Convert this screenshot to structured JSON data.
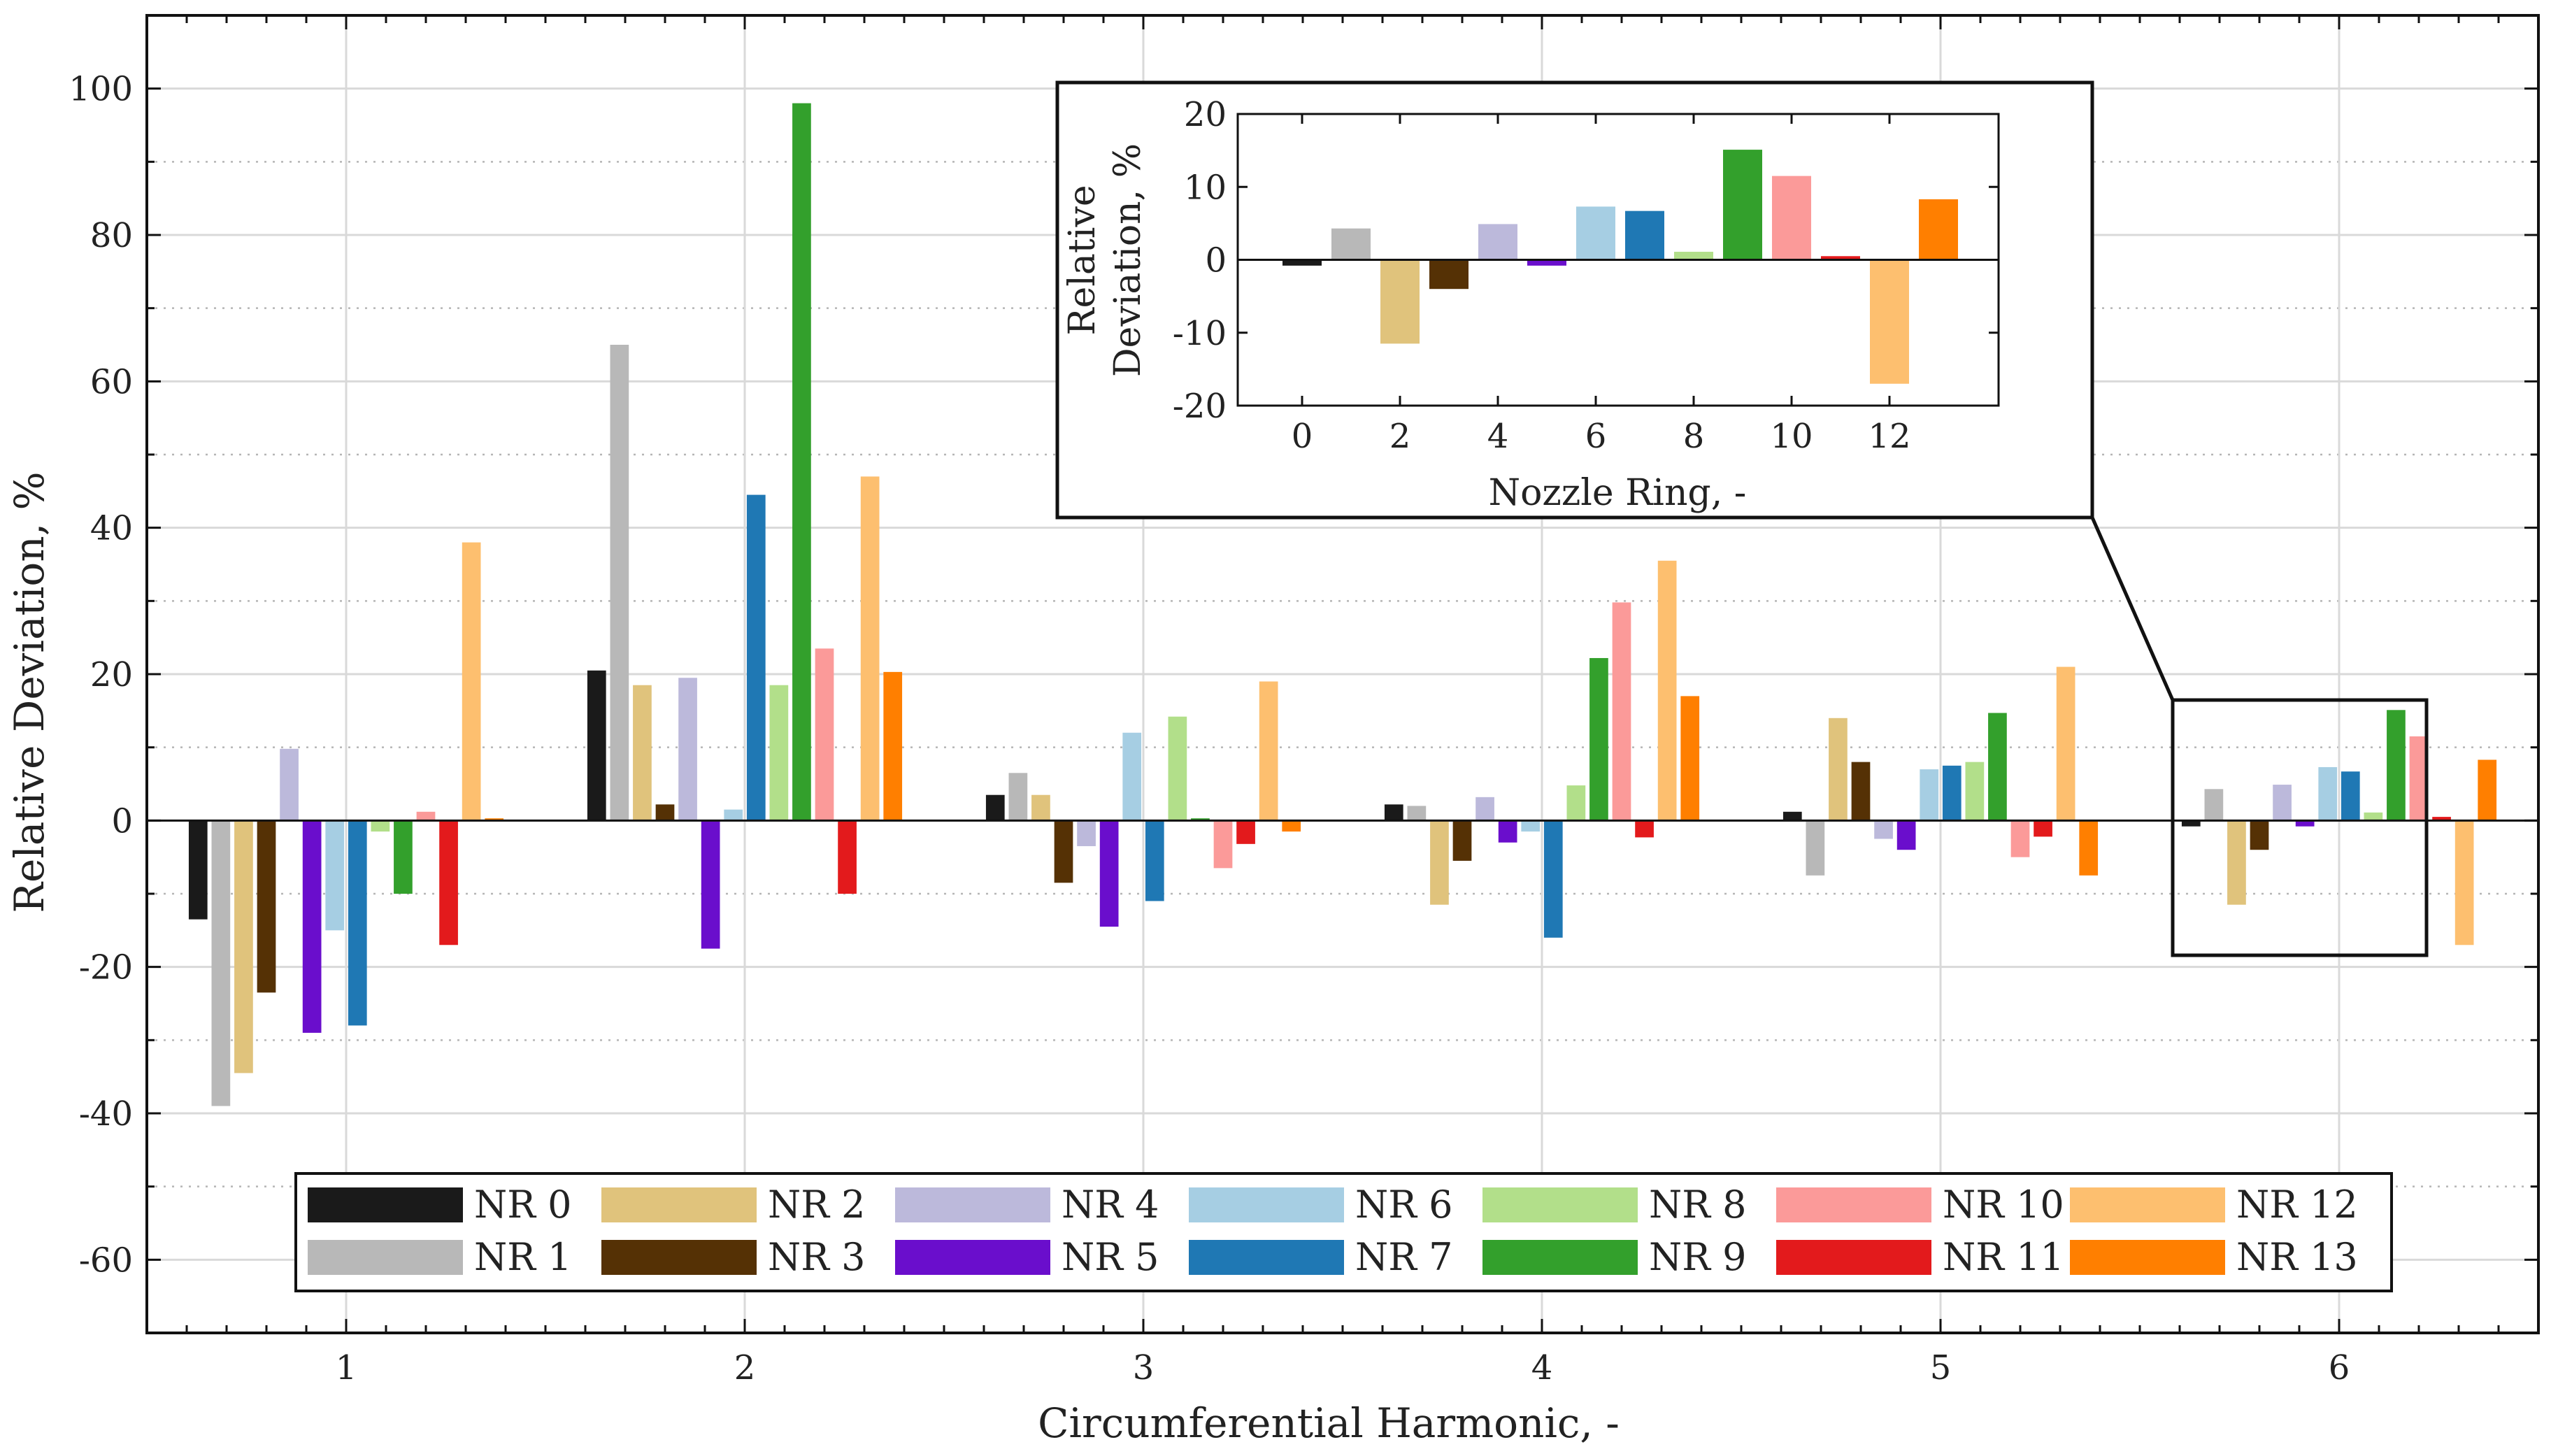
{
  "chart_data": {
    "main": {
      "type": "bar",
      "xlabel": "Circumferential Harmonic, -",
      "ylabel": "Relative Deviation, %",
      "ylim": [
        -70,
        110
      ],
      "xlim": [
        0.5,
        6.5
      ],
      "grid": true,
      "categories": [
        "1",
        "2",
        "3",
        "4",
        "5",
        "6"
      ],
      "yticks": [
        "-60",
        "-40",
        "-20",
        "0",
        "20",
        "40",
        "60",
        "80",
        "100"
      ],
      "series": [
        {
          "name": "NR 0",
          "color": "#1a1a1a",
          "values": [
            -13.5,
            20.5,
            3.5,
            2.2,
            1.2,
            -0.8
          ]
        },
        {
          "name": "NR 1",
          "color": "#b8b8b8",
          "values": [
            -39,
            65,
            6.5,
            2,
            -7.5,
            4.3
          ]
        },
        {
          "name": "NR 2",
          "color": "#e0c37c",
          "values": [
            -34.5,
            18.5,
            3.5,
            -11.5,
            14,
            -11.5
          ]
        },
        {
          "name": "NR 3",
          "color": "#553105",
          "values": [
            -23.5,
            2.2,
            -8.5,
            -5.5,
            8,
            -4
          ]
        },
        {
          "name": "NR 4",
          "color": "#bcb9db",
          "values": [
            9.8,
            19.5,
            -3.5,
            3.2,
            -2.5,
            4.9
          ]
        },
        {
          "name": "NR 5",
          "color": "#6a0ecc",
          "values": [
            -29,
            -17.5,
            -14.5,
            -3,
            -4,
            -0.8
          ]
        },
        {
          "name": "NR 6",
          "color": "#a6cee3",
          "values": [
            -15,
            1.5,
            12,
            -1.5,
            7,
            7.3
          ]
        },
        {
          "name": "NR 7",
          "color": "#1f78b4",
          "values": [
            -28,
            44.5,
            -11,
            -16,
            7.5,
            6.7
          ]
        },
        {
          "name": "NR 8",
          "color": "#b2df8a",
          "values": [
            -1.5,
            18.5,
            14.2,
            4.8,
            8,
            1.1
          ]
        },
        {
          "name": "NR 9",
          "color": "#33a02c",
          "values": [
            -10,
            98,
            0.3,
            22.2,
            14.7,
            15.1
          ]
        },
        {
          "name": "NR 10",
          "color": "#fb9a99",
          "values": [
            1.2,
            23.5,
            -6.5,
            29.8,
            -5,
            11.5
          ]
        },
        {
          "name": "NR 11",
          "color": "#e31a1c",
          "values": [
            -17,
            -10,
            -3.2,
            -2.3,
            -2.2,
            0.5
          ]
        },
        {
          "name": "NR 12",
          "color": "#fdbf6f",
          "values": [
            38,
            47,
            19,
            35.5,
            21,
            -17
          ]
        },
        {
          "name": "NR 13",
          "color": "#ff7f00",
          "values": [
            0.3,
            20.3,
            -1.5,
            17,
            -7.5,
            8.3
          ]
        }
      ]
    },
    "inset": {
      "type": "bar",
      "xlabel": "Nozzle Ring, -",
      "ylabel_line1": "Relative",
      "ylabel_line2": "Deviation, %",
      "ylim": [
        -20,
        20
      ],
      "xticks": [
        "0",
        "2",
        "4",
        "6",
        "8",
        "10",
        "12"
      ],
      "yticks": [
        "-20",
        "-10",
        "0",
        "10",
        "20"
      ],
      "categories": [
        0,
        1,
        2,
        3,
        4,
        5,
        6,
        7,
        8,
        9,
        10,
        11,
        12,
        13
      ],
      "values": [
        -0.8,
        4.3,
        -11.5,
        -4,
        4.9,
        -0.8,
        7.3,
        6.7,
        1.1,
        15.1,
        11.5,
        0.5,
        -17,
        8.3
      ],
      "colors": [
        "#1a1a1a",
        "#b8b8b8",
        "#e0c37c",
        "#553105",
        "#bcb9db",
        "#6a0ecc",
        "#a6cee3",
        "#1f78b4",
        "#b2df8a",
        "#33a02c",
        "#fb9a99",
        "#e31a1c",
        "#fdbf6f",
        "#ff7f00"
      ]
    }
  }
}
